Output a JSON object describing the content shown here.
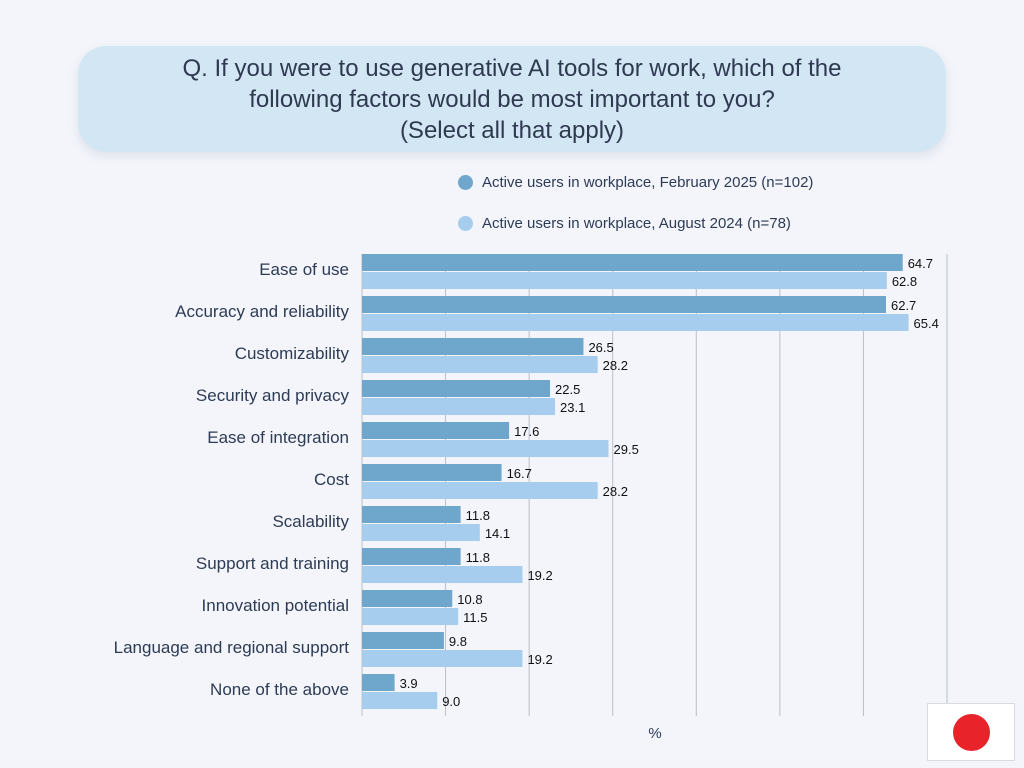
{
  "title": {
    "line1": "Q. If you were to use generative AI tools for work, which of the",
    "line2": "following factors would be most important to you?",
    "line3": "(Select all that apply)"
  },
  "colors": {
    "series1": "#6fa6cc",
    "series2": "#a7cdee",
    "gridline": "#b9bec8",
    "flag_red": "#e8242a"
  },
  "chart_data": {
    "type": "bar",
    "orientation": "horizontal",
    "categories": [
      "Ease of use",
      "Accuracy and reliability",
      "Customizability",
      "Security and privacy",
      "Ease of integration",
      "Cost",
      "Scalability",
      "Support and training",
      "Innovation potential",
      "Language and regional support",
      "None of the above"
    ],
    "series": [
      {
        "name": "Active users in workplace, February 2025 (n=102)",
        "values": [
          64.7,
          62.7,
          26.5,
          22.5,
          17.6,
          16.7,
          11.8,
          11.8,
          10.8,
          9.8,
          3.9
        ]
      },
      {
        "name": "Active users in workplace, August 2024 (n=78)",
        "values": [
          62.8,
          65.4,
          28.2,
          23.1,
          29.5,
          28.2,
          14.1,
          19.2,
          11.5,
          19.2,
          9.0
        ]
      }
    ],
    "xlabel": "%",
    "xlim": [
      0,
      70
    ],
    "grid": true,
    "legend": "top",
    "data_labels": true
  }
}
